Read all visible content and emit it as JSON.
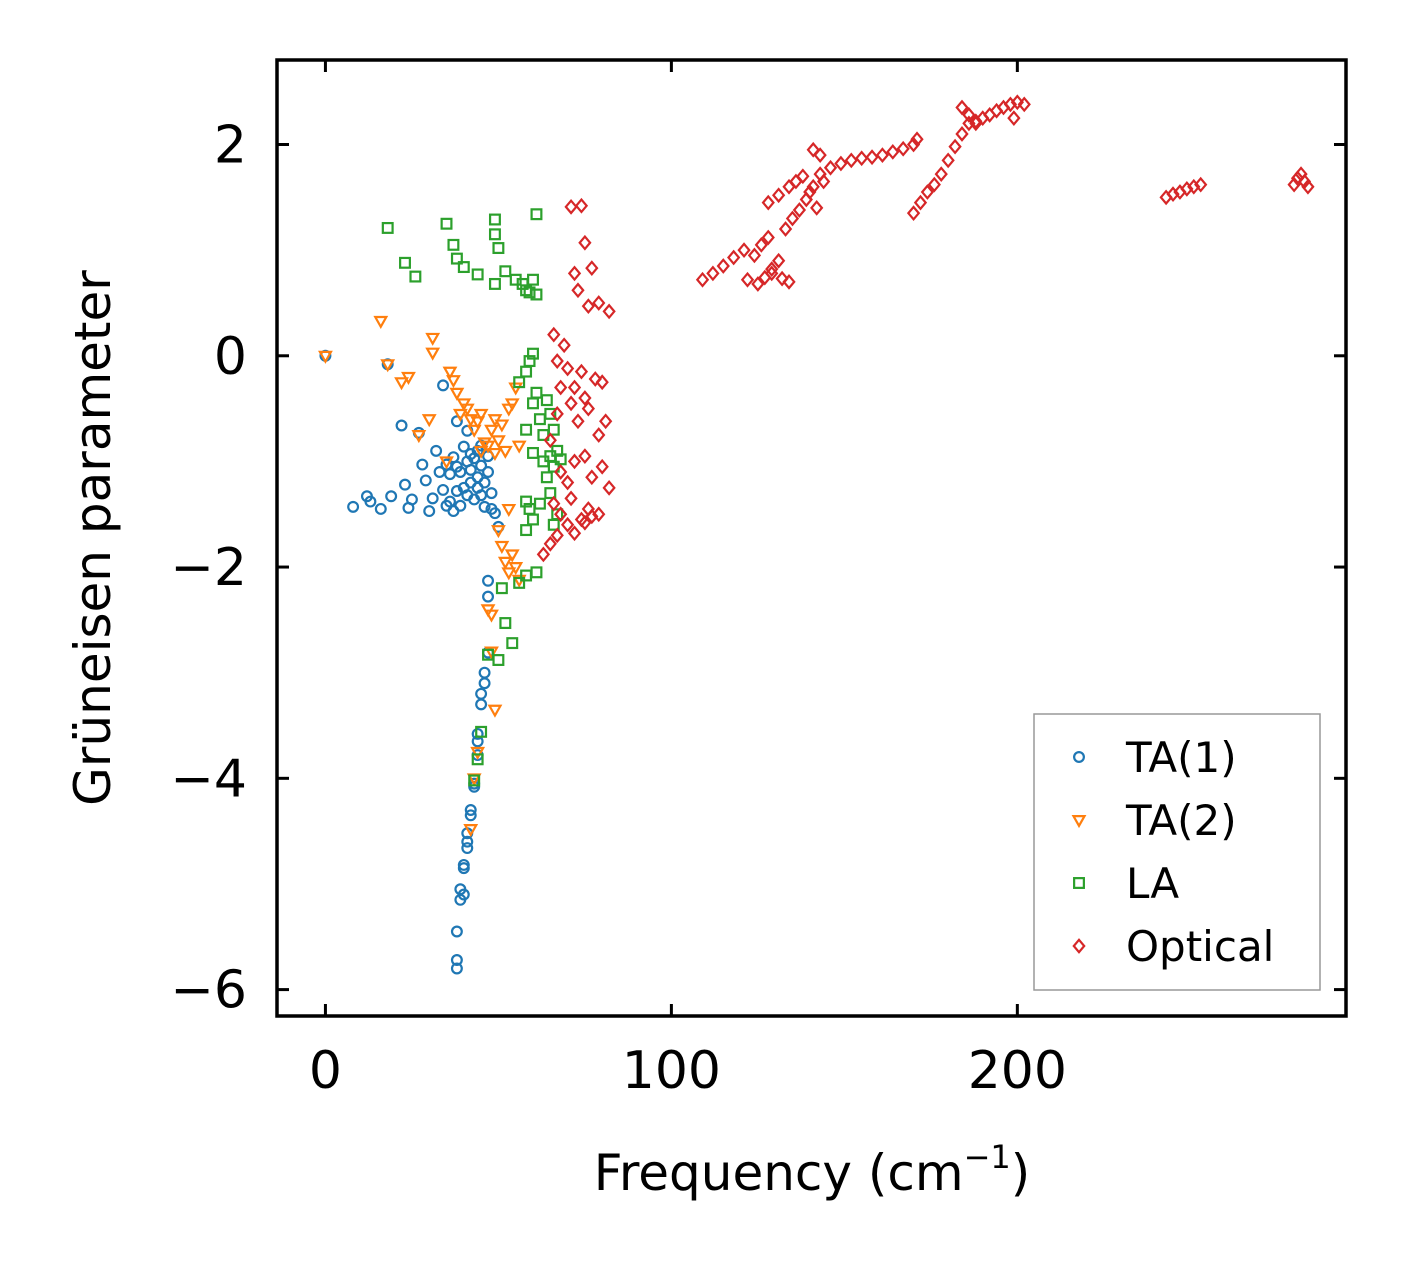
{
  "chart_data": {
    "type": "scatter",
    "title": "",
    "xlabel_main": "Frequency (cm",
    "xlabel_sup": "−1",
    "xlabel_close": ")",
    "ylabel": "Grüneisen parameter",
    "xlim": [
      -14,
      295
    ],
    "ylim": [
      -6.25,
      2.8
    ],
    "xticks": [
      0,
      100,
      200
    ],
    "xtick_labels": [
      "0",
      "100",
      "200"
    ],
    "yticks": [
      2,
      0,
      -2,
      -4,
      -6
    ],
    "ytick_labels": [
      "2",
      "0",
      "−2",
      "−4",
      "−6"
    ],
    "legend_position": "lower-right",
    "series": [
      {
        "name": "TA(1)",
        "marker": "circle",
        "color": "#1f77b4",
        "points": [
          [
            0,
            0
          ],
          [
            8,
            -1.43
          ],
          [
            12,
            -1.33
          ],
          [
            13,
            -1.38
          ],
          [
            16,
            -1.45
          ],
          [
            18,
            -0.08
          ],
          [
            19,
            -1.33
          ],
          [
            22,
            -0.66
          ],
          [
            23,
            -1.22
          ],
          [
            24,
            -1.44
          ],
          [
            25,
            -1.36
          ],
          [
            27,
            -0.73
          ],
          [
            28,
            -1.03
          ],
          [
            29,
            -1.18
          ],
          [
            30,
            -1.47
          ],
          [
            31,
            -1.35
          ],
          [
            32,
            -0.9
          ],
          [
            33,
            -1.1
          ],
          [
            34,
            -0.28
          ],
          [
            34,
            -1.27
          ],
          [
            35,
            -1.42
          ],
          [
            35,
            -1.03
          ],
          [
            36,
            -1.12
          ],
          [
            36,
            -1.38
          ],
          [
            37,
            -1.47
          ],
          [
            37,
            -0.96
          ],
          [
            38,
            -1.05
          ],
          [
            38,
            -1.28
          ],
          [
            38,
            -0.62
          ],
          [
            39,
            -1.42
          ],
          [
            39,
            -1.1
          ],
          [
            40,
            -0.86
          ],
          [
            40,
            -1.25
          ],
          [
            41,
            -1.0
          ],
          [
            41,
            -0.71
          ],
          [
            41,
            -1.32
          ],
          [
            42,
            -0.93
          ],
          [
            42,
            -1.08
          ],
          [
            42,
            -1.2
          ],
          [
            43,
            -0.97
          ],
          [
            43,
            -1.36
          ],
          [
            44,
            -0.9
          ],
          [
            44,
            -1.15
          ],
          [
            44,
            -1.25
          ],
          [
            45,
            -1.04
          ],
          [
            45,
            -0.85
          ],
          [
            45,
            -1.32
          ],
          [
            46,
            -1.2
          ],
          [
            46,
            -1.43
          ],
          [
            47,
            -0.95
          ],
          [
            47,
            -1.1
          ],
          [
            48,
            -1.3
          ],
          [
            48,
            -1.45
          ],
          [
            49,
            -1.49
          ],
          [
            50,
            -1.62
          ],
          [
            47,
            -2.13
          ],
          [
            47,
            -2.28
          ],
          [
            47,
            -2.81
          ],
          [
            46,
            -3.0
          ],
          [
            46,
            -3.1
          ],
          [
            45,
            -3.3
          ],
          [
            45,
            -3.2
          ],
          [
            44,
            -3.58
          ],
          [
            44,
            -3.65
          ],
          [
            44,
            -3.78
          ],
          [
            43,
            -4.05
          ],
          [
            43,
            -4.08
          ],
          [
            42,
            -4.3
          ],
          [
            42,
            -4.35
          ],
          [
            41,
            -4.52
          ],
          [
            41,
            -4.6
          ],
          [
            41,
            -4.66
          ],
          [
            40,
            -4.82
          ],
          [
            40,
            -4.85
          ],
          [
            40,
            -5.1
          ],
          [
            39,
            -5.05
          ],
          [
            39,
            -5.15
          ],
          [
            38,
            -5.45
          ],
          [
            38,
            -5.72
          ],
          [
            38,
            -5.8
          ]
        ]
      },
      {
        "name": "TA(2)",
        "marker": "triangle-down",
        "color": "#ff7f0e",
        "points": [
          [
            0,
            0
          ],
          [
            16,
            0.33
          ],
          [
            18,
            -0.08
          ],
          [
            22,
            -0.25
          ],
          [
            24,
            -0.2
          ],
          [
            27,
            -0.75
          ],
          [
            30,
            -0.6
          ],
          [
            31,
            0.17
          ],
          [
            31,
            0.03
          ],
          [
            35,
            -1.0
          ],
          [
            36,
            -0.15
          ],
          [
            37,
            -0.23
          ],
          [
            38,
            -0.35
          ],
          [
            39,
            -0.55
          ],
          [
            40,
            -0.45
          ],
          [
            41,
            -0.5
          ],
          [
            42,
            -0.6
          ],
          [
            43,
            -0.7
          ],
          [
            44,
            -0.62
          ],
          [
            45,
            -0.55
          ],
          [
            45,
            -0.9
          ],
          [
            46,
            -0.82
          ],
          [
            47,
            -0.85
          ],
          [
            48,
            -0.7
          ],
          [
            49,
            -0.6
          ],
          [
            49,
            -0.92
          ],
          [
            50,
            -0.8
          ],
          [
            51,
            -0.65
          ],
          [
            52,
            -0.9
          ],
          [
            53,
            -0.5
          ],
          [
            54,
            -0.45
          ],
          [
            55,
            -0.3
          ],
          [
            56,
            -0.85
          ],
          [
            50,
            -1.65
          ],
          [
            51,
            -1.8
          ],
          [
            52,
            -1.95
          ],
          [
            53,
            -2.05
          ],
          [
            54,
            -1.88
          ],
          [
            55,
            -2.0
          ],
          [
            56,
            -2.12
          ],
          [
            47,
            -2.4
          ],
          [
            48,
            -2.45
          ],
          [
            48,
            -2.8
          ],
          [
            49,
            -3.35
          ],
          [
            44,
            -3.75
          ],
          [
            43,
            -4.0
          ],
          [
            42,
            -4.48
          ],
          [
            53,
            -1.45
          ]
        ]
      },
      {
        "name": "LA",
        "marker": "square",
        "color": "#2ca02c",
        "points": [
          [
            18,
            1.21
          ],
          [
            23,
            0.88
          ],
          [
            26,
            0.75
          ],
          [
            35,
            1.25
          ],
          [
            37,
            1.05
          ],
          [
            38,
            0.92
          ],
          [
            40,
            0.84
          ],
          [
            44,
            0.77
          ],
          [
            49,
            1.29
          ],
          [
            49,
            1.15
          ],
          [
            50,
            1.02
          ],
          [
            49,
            0.68
          ],
          [
            52,
            0.8
          ],
          [
            55,
            0.72
          ],
          [
            57,
            0.68
          ],
          [
            58,
            0.62
          ],
          [
            59,
            0.6
          ],
          [
            60,
            0.72
          ],
          [
            61,
            0.58
          ],
          [
            61,
            1.34
          ],
          [
            56,
            -0.25
          ],
          [
            58,
            -0.15
          ],
          [
            59,
            -0.05
          ],
          [
            60,
            0.02
          ],
          [
            58,
            -0.7
          ],
          [
            60,
            -0.45
          ],
          [
            61,
            -0.35
          ],
          [
            62,
            -0.6
          ],
          [
            63,
            -0.75
          ],
          [
            64,
            -0.42
          ],
          [
            65,
            -0.55
          ],
          [
            66,
            -0.7
          ],
          [
            60,
            -0.92
          ],
          [
            63,
            -1.0
          ],
          [
            64,
            -1.15
          ],
          [
            65,
            -0.95
          ],
          [
            66,
            -1.05
          ],
          [
            67,
            -0.9
          ],
          [
            68,
            -0.98
          ],
          [
            58,
            -1.38
          ],
          [
            59,
            -1.45
          ],
          [
            60,
            -1.55
          ],
          [
            62,
            -1.4
          ],
          [
            65,
            -1.3
          ],
          [
            66,
            -1.6
          ],
          [
            67,
            -1.5
          ],
          [
            58,
            -1.65
          ],
          [
            51,
            -2.2
          ],
          [
            56,
            -2.15
          ],
          [
            58,
            -2.08
          ],
          [
            61,
            -2.05
          ],
          [
            52,
            -2.53
          ],
          [
            54,
            -2.72
          ],
          [
            50,
            -2.88
          ],
          [
            47,
            -2.83
          ],
          [
            45,
            -3.56
          ],
          [
            44,
            -3.82
          ],
          [
            43,
            -4.02
          ]
        ]
      },
      {
        "name": "Optical",
        "marker": "diamond",
        "color": "#d62728",
        "points": [
          [
            71,
            1.41
          ],
          [
            74,
            1.42
          ],
          [
            75,
            1.07
          ],
          [
            72,
            0.78
          ],
          [
            77,
            0.83
          ],
          [
            73,
            0.62
          ],
          [
            76,
            0.47
          ],
          [
            79,
            0.5
          ],
          [
            82,
            0.42
          ],
          [
            66,
            0.2
          ],
          [
            69,
            0.1
          ],
          [
            67,
            -0.05
          ],
          [
            68,
            -0.3
          ],
          [
            70,
            -0.12
          ],
          [
            72,
            -0.3
          ],
          [
            74,
            -0.15
          ],
          [
            75,
            -0.4
          ],
          [
            78,
            -0.22
          ],
          [
            80,
            -0.25
          ],
          [
            65,
            -0.8
          ],
          [
            67,
            -0.55
          ],
          [
            71,
            -0.45
          ],
          [
            73,
            -0.62
          ],
          [
            76,
            -0.5
          ],
          [
            79,
            -0.75
          ],
          [
            81,
            -0.62
          ],
          [
            68,
            -1.1
          ],
          [
            70,
            -1.2
          ],
          [
            72,
            -1.0
          ],
          [
            75,
            -0.95
          ],
          [
            77,
            -1.15
          ],
          [
            80,
            -1.05
          ],
          [
            82,
            -1.25
          ],
          [
            66,
            -1.4
          ],
          [
            68,
            -1.5
          ],
          [
            71,
            -1.35
          ],
          [
            74,
            -1.55
          ],
          [
            76,
            -1.45
          ],
          [
            79,
            -1.5
          ],
          [
            63,
            -1.88
          ],
          [
            65,
            -1.78
          ],
          [
            67,
            -1.7
          ],
          [
            70,
            -1.6
          ],
          [
            72,
            -1.68
          ],
          [
            75,
            -1.58
          ],
          [
            77,
            -1.52
          ],
          [
            109,
            0.72
          ],
          [
            112,
            0.78
          ],
          [
            115,
            0.85
          ],
          [
            118,
            0.93
          ],
          [
            121,
            1.0
          ],
          [
            124,
            0.95
          ],
          [
            126,
            1.05
          ],
          [
            128,
            1.12
          ],
          [
            129,
            0.82
          ],
          [
            131,
            0.9
          ],
          [
            133,
            1.2
          ],
          [
            135,
            1.3
          ],
          [
            137,
            1.38
          ],
          [
            139,
            1.48
          ],
          [
            141,
            1.6
          ],
          [
            143,
            1.72
          ],
          [
            146,
            1.78
          ],
          [
            149,
            1.82
          ],
          [
            152,
            1.85
          ],
          [
            155,
            1.87
          ],
          [
            158,
            1.88
          ],
          [
            161,
            1.9
          ],
          [
            164,
            1.93
          ],
          [
            167,
            1.96
          ],
          [
            170,
            2.0
          ],
          [
            171,
            2.05
          ],
          [
            122,
            0.72
          ],
          [
            125,
            0.68
          ],
          [
            127,
            0.74
          ],
          [
            129,
            0.78
          ],
          [
            132,
            0.73
          ],
          [
            134,
            0.7
          ],
          [
            128,
            1.45
          ],
          [
            131,
            1.52
          ],
          [
            134,
            1.6
          ],
          [
            136,
            1.65
          ],
          [
            138,
            1.7
          ],
          [
            140,
            1.55
          ],
          [
            142,
            1.4
          ],
          [
            144,
            1.65
          ],
          [
            141,
            1.95
          ],
          [
            143,
            1.9
          ],
          [
            170,
            1.35
          ],
          [
            172,
            1.45
          ],
          [
            174,
            1.55
          ],
          [
            176,
            1.62
          ],
          [
            178,
            1.72
          ],
          [
            180,
            1.85
          ],
          [
            182,
            1.98
          ],
          [
            184,
            2.1
          ],
          [
            186,
            2.2
          ],
          [
            188,
            2.22
          ],
          [
            190,
            2.25
          ],
          [
            192,
            2.28
          ],
          [
            194,
            2.32
          ],
          [
            196,
            2.35
          ],
          [
            198,
            2.38
          ],
          [
            200,
            2.4
          ],
          [
            202,
            2.38
          ],
          [
            184,
            2.35
          ],
          [
            186,
            2.28
          ],
          [
            188,
            2.2
          ],
          [
            199,
            2.25
          ],
          [
            243,
            1.5
          ],
          [
            245,
            1.53
          ],
          [
            247,
            1.55
          ],
          [
            249,
            1.58
          ],
          [
            251,
            1.6
          ],
          [
            253,
            1.62
          ],
          [
            280,
            1.62
          ],
          [
            281,
            1.68
          ],
          [
            282,
            1.72
          ],
          [
            283,
            1.65
          ],
          [
            284,
            1.6
          ]
        ]
      }
    ]
  }
}
